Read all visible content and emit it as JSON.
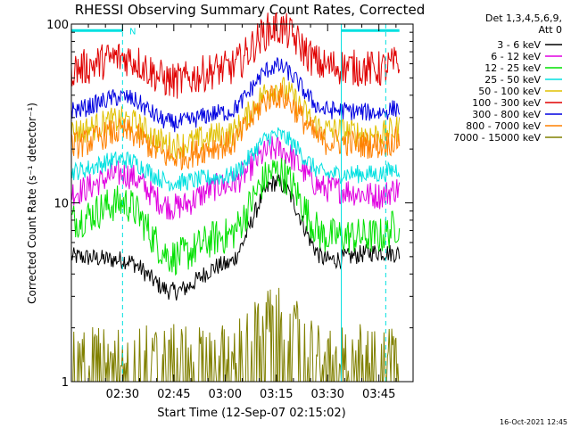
{
  "chart_data": {
    "type": "line",
    "title": "RHESSI Observing Summary Count Rates, Corrected",
    "xlabel": "Start Time (12-Sep-07 02:15:02)",
    "ylabel": "Corrected Count Rate (s⁻¹ detector⁻¹)",
    "y_scale": "log",
    "ylim": [
      1,
      100
    ],
    "y_ticks": [
      {
        "value": 1,
        "label": "1"
      },
      {
        "value": 10,
        "label": "10"
      },
      {
        "value": 100,
        "label": "100"
      }
    ],
    "xlim": [
      "02:15:02",
      "03:55:00"
    ],
    "x_ticks": [
      "02:30",
      "02:45",
      "03:00",
      "03:15",
      "03:30",
      "03:45"
    ],
    "legend": {
      "position": "top-right",
      "header": [
        "Det 1,3,4,5,6,9,",
        "Att 0"
      ]
    },
    "annotations": [
      {
        "text": "N",
        "time": "02:32"
      }
    ],
    "night_markers": {
      "color": "#00e0e0",
      "dashed_lines": [
        "02:30",
        "03:47"
      ],
      "solid_lines": [
        "03:34"
      ],
      "bars": [
        {
          "start": "02:15",
          "end": "02:30",
          "value": 92
        },
        {
          "start": "03:34",
          "end": "03:51",
          "value": 92
        }
      ]
    },
    "footer_timestamp": "16-Oct-2021 12:45",
    "x_sample_times": [
      "02:15",
      "02:30",
      "02:45",
      "03:00",
      "03:15",
      "03:30",
      "03:45",
      "03:51"
    ],
    "series": [
      {
        "name": "3 - 6 keV",
        "color": "#000000",
        "values": [
          5.0,
          4.8,
          3.2,
          4.5,
          13.0,
          4.8,
          5.3,
          5.2
        ]
      },
      {
        "name": "6 - 12 keV",
        "color": "#e000e0",
        "values": [
          11.5,
          14.5,
          9.5,
          12.5,
          20.0,
          12.0,
          11.0,
          12.0
        ]
      },
      {
        "name": "12 - 25 keV",
        "color": "#00e000",
        "values": [
          8.0,
          10.0,
          5.0,
          6.5,
          15.0,
          6.5,
          6.5,
          7.5
        ]
      },
      {
        "name": "25 - 50 keV",
        "color": "#00e0e0",
        "values": [
          15.0,
          17.5,
          13.0,
          14.0,
          24.0,
          14.5,
          14.5,
          15.5
        ]
      },
      {
        "name": "50 - 100 keV",
        "color": "#e0c000",
        "values": [
          25.0,
          29.0,
          21.0,
          24.0,
          44.0,
          25.5,
          24.0,
          26.0
        ]
      },
      {
        "name": "100 - 300 keV",
        "color": "#e00000",
        "values": [
          56.0,
          65.0,
          48.0,
          56.0,
          95.0,
          58.0,
          56.0,
          60.0
        ]
      },
      {
        "name": "300 - 800 keV",
        "color": "#0000e0",
        "values": [
          33.0,
          39.0,
          28.0,
          32.0,
          58.0,
          33.0,
          32.0,
          34.0
        ]
      },
      {
        "name": "800 - 7000 keV",
        "color": "#ff8000",
        "values": [
          21.0,
          25.0,
          18.0,
          21.0,
          40.0,
          22.0,
          21.0,
          22.5
        ]
      },
      {
        "name": "7000 - 15000 keV",
        "color": "#808000",
        "values": [
          1.0,
          1.0,
          1.0,
          1.0,
          1.6,
          1.0,
          1.0,
          1.0
        ]
      }
    ]
  }
}
